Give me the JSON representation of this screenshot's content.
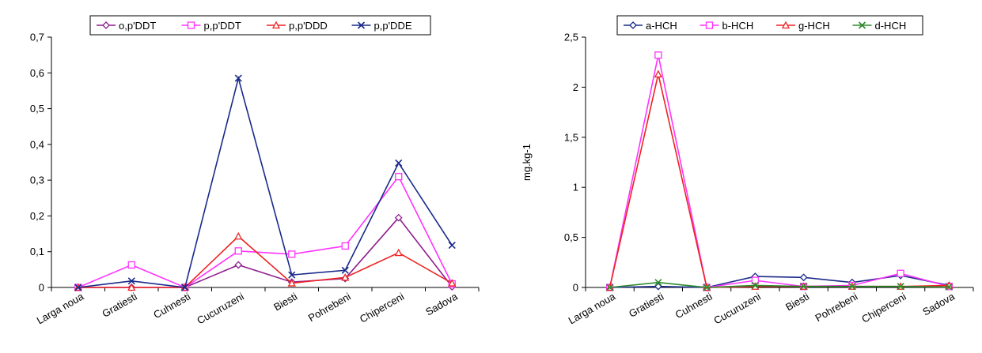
{
  "colors": {
    "o,p'DDT": "#8e1f8e",
    "p,p'DDT": "#ff33ff",
    "p,p'DDD": "#ee2222",
    "p,p'DDE": "#1a2a8a",
    "a-HCH": "#1a2a8a",
    "b-HCH": "#ff33ff",
    "g-HCH": "#ee2222",
    "d-HCH": "#2e8b2e"
  },
  "chart_data": [
    {
      "type": "line",
      "categories": [
        "Larga noua",
        "Gratiesti",
        "Cuhnesti",
        "Cucuruzeni",
        "Biesti",
        "Pohrebeni",
        "Chiperceni",
        "Sadova"
      ],
      "ylim": [
        0,
        0.7
      ],
      "yticks": [
        "0",
        "0,1",
        "0,2",
        "0,3",
        "0,4",
        "0,5",
        "0,6",
        "0,7"
      ],
      "ylabel": "",
      "legend_position": "top",
      "series": [
        {
          "name": "o,p'DDT",
          "marker": "diamond",
          "values": [
            0,
            0,
            0,
            0.063,
            0.015,
            0.025,
            0.195,
            0.002
          ]
        },
        {
          "name": "p,p'DDT",
          "marker": "square",
          "values": [
            0,
            0.063,
            0,
            0.102,
            0.093,
            0.116,
            0.31,
            0.01
          ]
        },
        {
          "name": "p,p'DDD",
          "marker": "triangle",
          "values": [
            0,
            0,
            0,
            0.143,
            0.012,
            0.028,
            0.097,
            0.012
          ]
        },
        {
          "name": "p,p'DDE",
          "marker": "x",
          "values": [
            0,
            0.018,
            0,
            0.585,
            0.035,
            0.048,
            0.348,
            0.118
          ]
        }
      ]
    },
    {
      "type": "line",
      "categories": [
        "Larga noua",
        "Gratiesti",
        "Cuhnesti",
        "Cucuruzeni",
        "Biesti",
        "Pohrebeni",
        "Chiperceni",
        "Sadova"
      ],
      "ylim": [
        0,
        2.5
      ],
      "yticks": [
        "0",
        "0,5",
        "1",
        "1,5",
        "2",
        "2,5"
      ],
      "ylabel": "mg.kg-1",
      "legend_position": "top",
      "series": [
        {
          "name": "a-HCH",
          "marker": "diamond",
          "values": [
            0,
            0.01,
            0,
            0.11,
            0.1,
            0.05,
            0.12,
            0.02
          ]
        },
        {
          "name": "b-HCH",
          "marker": "square",
          "values": [
            0,
            2.32,
            0,
            0.07,
            0.01,
            0.02,
            0.14,
            0.01
          ]
        },
        {
          "name": "g-HCH",
          "marker": "triangle",
          "values": [
            0,
            2.13,
            0,
            0.01,
            0.01,
            0.01,
            0.01,
            0.02
          ]
        },
        {
          "name": "d-HCH",
          "marker": "x",
          "values": [
            0,
            0.05,
            0,
            0.02,
            0.01,
            0.01,
            0.01,
            0.005
          ]
        }
      ]
    }
  ]
}
